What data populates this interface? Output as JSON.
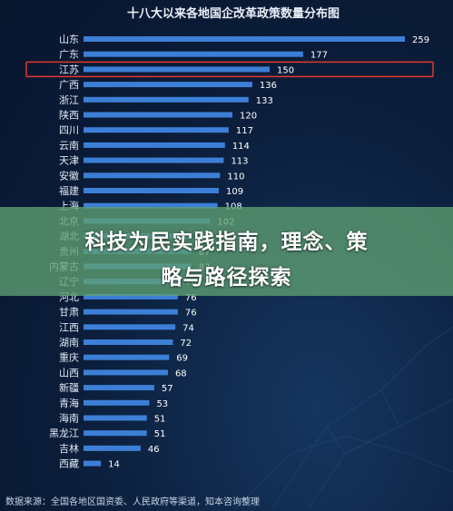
{
  "chart_data": {
    "type": "bar",
    "orientation": "horizontal",
    "title": "十八大以来各地国企改革政策数量分布图",
    "categories": [
      "山东",
      "广东",
      "江苏",
      "广西",
      "浙江",
      "陕西",
      "四川",
      "云南",
      "天津",
      "安徽",
      "福建",
      "上海",
      "北京",
      "湖北",
      "贵州",
      "内蒙古",
      "辽宁",
      "河北",
      "甘肃",
      "江西",
      "湖南",
      "重庆",
      "山西",
      "新疆",
      "青海",
      "海南",
      "黑龙江",
      "吉林",
      "西藏"
    ],
    "values": [
      259,
      177,
      150,
      136,
      133,
      120,
      117,
      114,
      113,
      110,
      109,
      108,
      102,
      87,
      87,
      87,
      76,
      76,
      76,
      74,
      72,
      69,
      68,
      57,
      53,
      51,
      51,
      46,
      14
    ],
    "highlight": "江苏",
    "highlight_color": "#e03a2f",
    "bar_color": "#3d7fd6",
    "source": "数据来源：全国各地区国资委、人民政府等渠道，知本咨询整理"
  },
  "banner": {
    "line1": "科技为民实践指南，理念、策",
    "line2": "略与路径探索",
    "color": "#5fa073"
  }
}
